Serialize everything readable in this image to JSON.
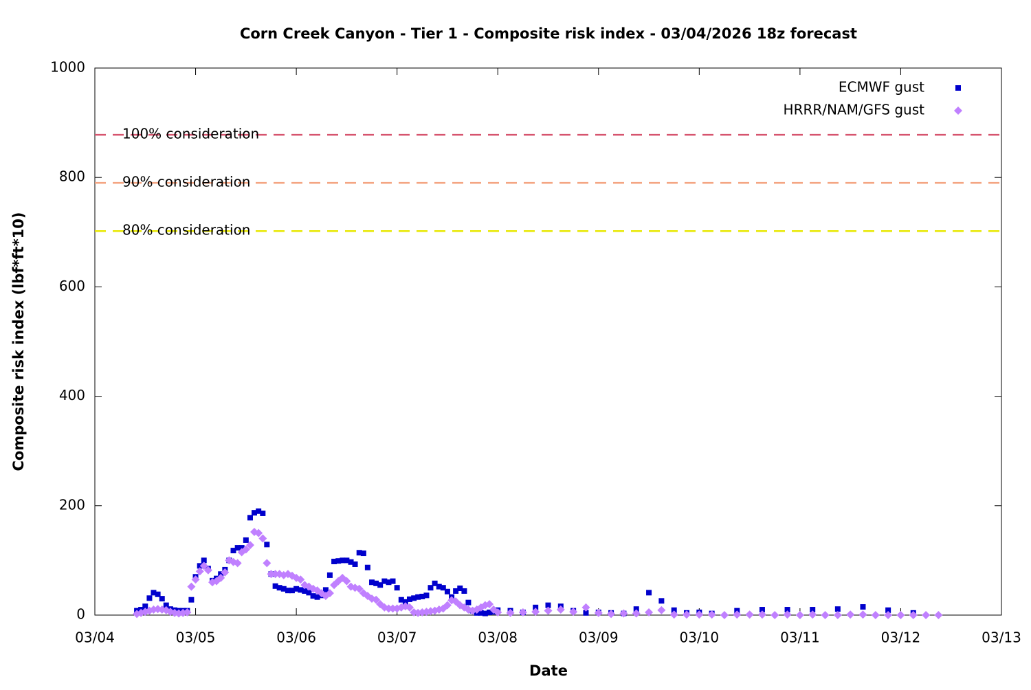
{
  "chart_data": {
    "type": "scatter",
    "title": "Corn Creek Canyon - Tier 1 - Composite risk index - 03/04/2026 18z forecast",
    "x_label": "Date",
    "y_label": "Composite risk index (lbf*ft*10)",
    "xlim": [
      4,
      13
    ],
    "xticks": [
      {
        "value": 4,
        "label": "03/04"
      },
      {
        "value": 5,
        "label": "03/05"
      },
      {
        "value": 6,
        "label": "03/06"
      },
      {
        "value": 7,
        "label": "03/07"
      },
      {
        "value": 8,
        "label": "03/08"
      },
      {
        "value": 9,
        "label": "03/09"
      },
      {
        "value": 10,
        "label": "03/10"
      },
      {
        "value": 11,
        "label": "03/11"
      },
      {
        "value": 12,
        "label": "03/12"
      },
      {
        "value": 13,
        "label": "03/13"
      }
    ],
    "ylim": [
      0,
      1000
    ],
    "yticks": [
      0,
      200,
      400,
      600,
      800,
      1000
    ],
    "legend": "top-right",
    "thresholds": [
      {
        "label": "100% consideration",
        "value": 878,
        "color": "#d6546e"
      },
      {
        "label": "90% consideration",
        "value": 790,
        "color": "#f4a582"
      },
      {
        "label": "80% consideration",
        "value": 702,
        "color": "#e8e800"
      }
    ],
    "series": [
      {
        "name": "ECMWF gust",
        "color": "#0000cc",
        "marker": "square",
        "x": [
          4.417,
          4.458,
          4.5,
          4.542,
          4.583,
          4.625,
          4.667,
          4.708,
          4.75,
          4.792,
          4.833,
          4.875,
          4.917,
          4.958,
          5,
          5.042,
          5.083,
          5.125,
          5.167,
          5.208,
          5.25,
          5.292,
          5.333,
          5.375,
          5.417,
          5.458,
          5.5,
          5.542,
          5.583,
          5.625,
          5.667,
          5.708,
          5.75,
          5.792,
          5.833,
          5.875,
          5.917,
          5.958,
          6,
          6.042,
          6.083,
          6.125,
          6.167,
          6.208,
          6.25,
          6.292,
          6.333,
          6.375,
          6.417,
          6.458,
          6.5,
          6.542,
          6.583,
          6.625,
          6.667,
          6.708,
          6.75,
          6.792,
          6.833,
          6.875,
          6.917,
          6.958,
          7,
          7.042,
          7.083,
          7.125,
          7.167,
          7.208,
          7.25,
          7.292,
          7.333,
          7.375,
          7.417,
          7.458,
          7.5,
          7.542,
          7.583,
          7.625,
          7.667,
          7.708,
          7.75,
          7.792,
          7.833,
          7.875,
          7.917,
          7.958,
          8,
          8.125,
          8.25,
          8.375,
          8.5,
          8.625,
          8.75,
          8.875,
          9,
          9.125,
          9.25,
          9.375,
          9.5,
          9.625,
          9.75,
          9.875,
          10,
          10.125,
          10.375,
          10.625,
          10.875,
          11.125,
          11.375,
          11.625,
          11.875,
          12.125
        ],
        "values": [
          8,
          10,
          16,
          31,
          41,
          38,
          30,
          18,
          11,
          9,
          8,
          8,
          8,
          28,
          70,
          90,
          100,
          85,
          63,
          67,
          75,
          83,
          100,
          118,
          123,
          123,
          137,
          178,
          187,
          190,
          186,
          129,
          75,
          53,
          50,
          48,
          45,
          45,
          48,
          46,
          44,
          41,
          35,
          33,
          36,
          46,
          73,
          98,
          99,
          100,
          100,
          97,
          93,
          114,
          113,
          87,
          60,
          58,
          55,
          62,
          60,
          62,
          50,
          28,
          24,
          29,
          31,
          33,
          34,
          36,
          50,
          58,
          52,
          50,
          43,
          33,
          44,
          49,
          44,
          23,
          8,
          4,
          4,
          3,
          5,
          6,
          9,
          8,
          5,
          14,
          18,
          16,
          8,
          4,
          5,
          4,
          3,
          11,
          41,
          26,
          9,
          4,
          5,
          3,
          8,
          10,
          10,
          10,
          11,
          15,
          9,
          4
        ]
      },
      {
        "name": "HRRR/NAM/GFS gust",
        "color": "#c080ff",
        "marker": "diamond",
        "x": [
          4.417,
          4.458,
          4.5,
          4.542,
          4.583,
          4.625,
          4.667,
          4.708,
          4.75,
          4.792,
          4.833,
          4.875,
          4.917,
          4.958,
          5,
          5.042,
          5.083,
          5.125,
          5.167,
          5.208,
          5.25,
          5.292,
          5.333,
          5.375,
          5.417,
          5.458,
          5.5,
          5.542,
          5.583,
          5.625,
          5.667,
          5.708,
          5.75,
          5.792,
          5.833,
          5.875,
          5.917,
          5.958,
          6,
          6.042,
          6.083,
          6.125,
          6.167,
          6.208,
          6.25,
          6.292,
          6.333,
          6.375,
          6.417,
          6.458,
          6.5,
          6.542,
          6.583,
          6.625,
          6.667,
          6.708,
          6.75,
          6.792,
          6.833,
          6.875,
          6.917,
          6.958,
          7,
          7.042,
          7.083,
          7.125,
          7.167,
          7.208,
          7.25,
          7.292,
          7.333,
          7.375,
          7.417,
          7.458,
          7.5,
          7.542,
          7.583,
          7.625,
          7.667,
          7.708,
          7.75,
          7.792,
          7.833,
          7.875,
          7.917,
          7.958,
          8,
          8.125,
          8.25,
          8.375,
          8.5,
          8.625,
          8.75,
          8.875,
          9,
          9.125,
          9.25,
          9.375,
          9.5,
          9.625,
          9.75,
          9.875,
          10,
          10.125,
          10.25,
          10.375,
          10.5,
          10.625,
          10.75,
          10.875,
          11,
          11.125,
          11.25,
          11.375,
          11.5,
          11.625,
          11.75,
          11.875,
          12,
          12.125,
          12.25,
          12.375
        ],
        "values": [
          2,
          4,
          6,
          8,
          10,
          11,
          10,
          9,
          6,
          4,
          3,
          4,
          5,
          52,
          65,
          80,
          90,
          82,
          60,
          62,
          68,
          78,
          100,
          97,
          95,
          115,
          120,
          128,
          152,
          150,
          140,
          95,
          75,
          75,
          75,
          73,
          75,
          72,
          68,
          65,
          55,
          52,
          48,
          45,
          40,
          35,
          40,
          55,
          62,
          68,
          62,
          52,
          50,
          48,
          40,
          35,
          30,
          28,
          20,
          14,
          12,
          12,
          12,
          14,
          16,
          14,
          5,
          4,
          5,
          6,
          7,
          8,
          10,
          12,
          18,
          27,
          25,
          18,
          14,
          10,
          8,
          10,
          14,
          18,
          20,
          10,
          5,
          4,
          5,
          6,
          8,
          10,
          6,
          14,
          4,
          2,
          3,
          3,
          5,
          9,
          1,
          1,
          1,
          1,
          0,
          1,
          1,
          1,
          0,
          1,
          0,
          1,
          0,
          0,
          1,
          1,
          0,
          0,
          0,
          0,
          0,
          0
        ]
      }
    ]
  }
}
